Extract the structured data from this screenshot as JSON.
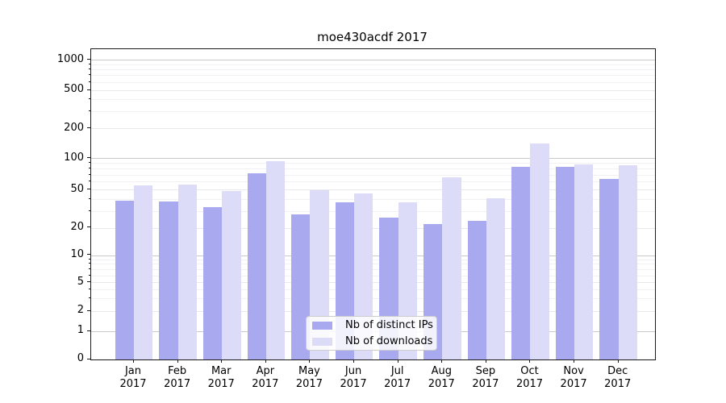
{
  "chart_data": {
    "type": "bar",
    "title": "moe430acdf 2017",
    "year_label": "2017",
    "categories": [
      "Jan",
      "Feb",
      "Mar",
      "Apr",
      "May",
      "Jun",
      "Jul",
      "Aug",
      "Sep",
      "Oct",
      "Nov",
      "Dec"
    ],
    "series": [
      {
        "name": "Nb of distinct IPs",
        "color": "#a9a9f0",
        "values": [
          39,
          38,
          33,
          72,
          28,
          37,
          26,
          22,
          24,
          84,
          84,
          64
        ]
      },
      {
        "name": "Nb of downloads",
        "color": "#dcdcf8",
        "values": [
          56,
          57,
          49,
          94,
          50,
          46,
          37,
          66,
          41,
          142,
          88,
          86
        ]
      }
    ],
    "yscale": "symlog",
    "yticks": [
      0,
      1,
      2,
      5,
      10,
      20,
      50,
      100,
      200,
      500,
      1000
    ],
    "ylim": [
      0,
      1300
    ],
    "grid": true,
    "legend_position": "lower center",
    "grid_major_color": "#c9c9c9",
    "grid_mid_color": "#e7e7ec",
    "grid_minor_color": "#f1f1f5"
  }
}
